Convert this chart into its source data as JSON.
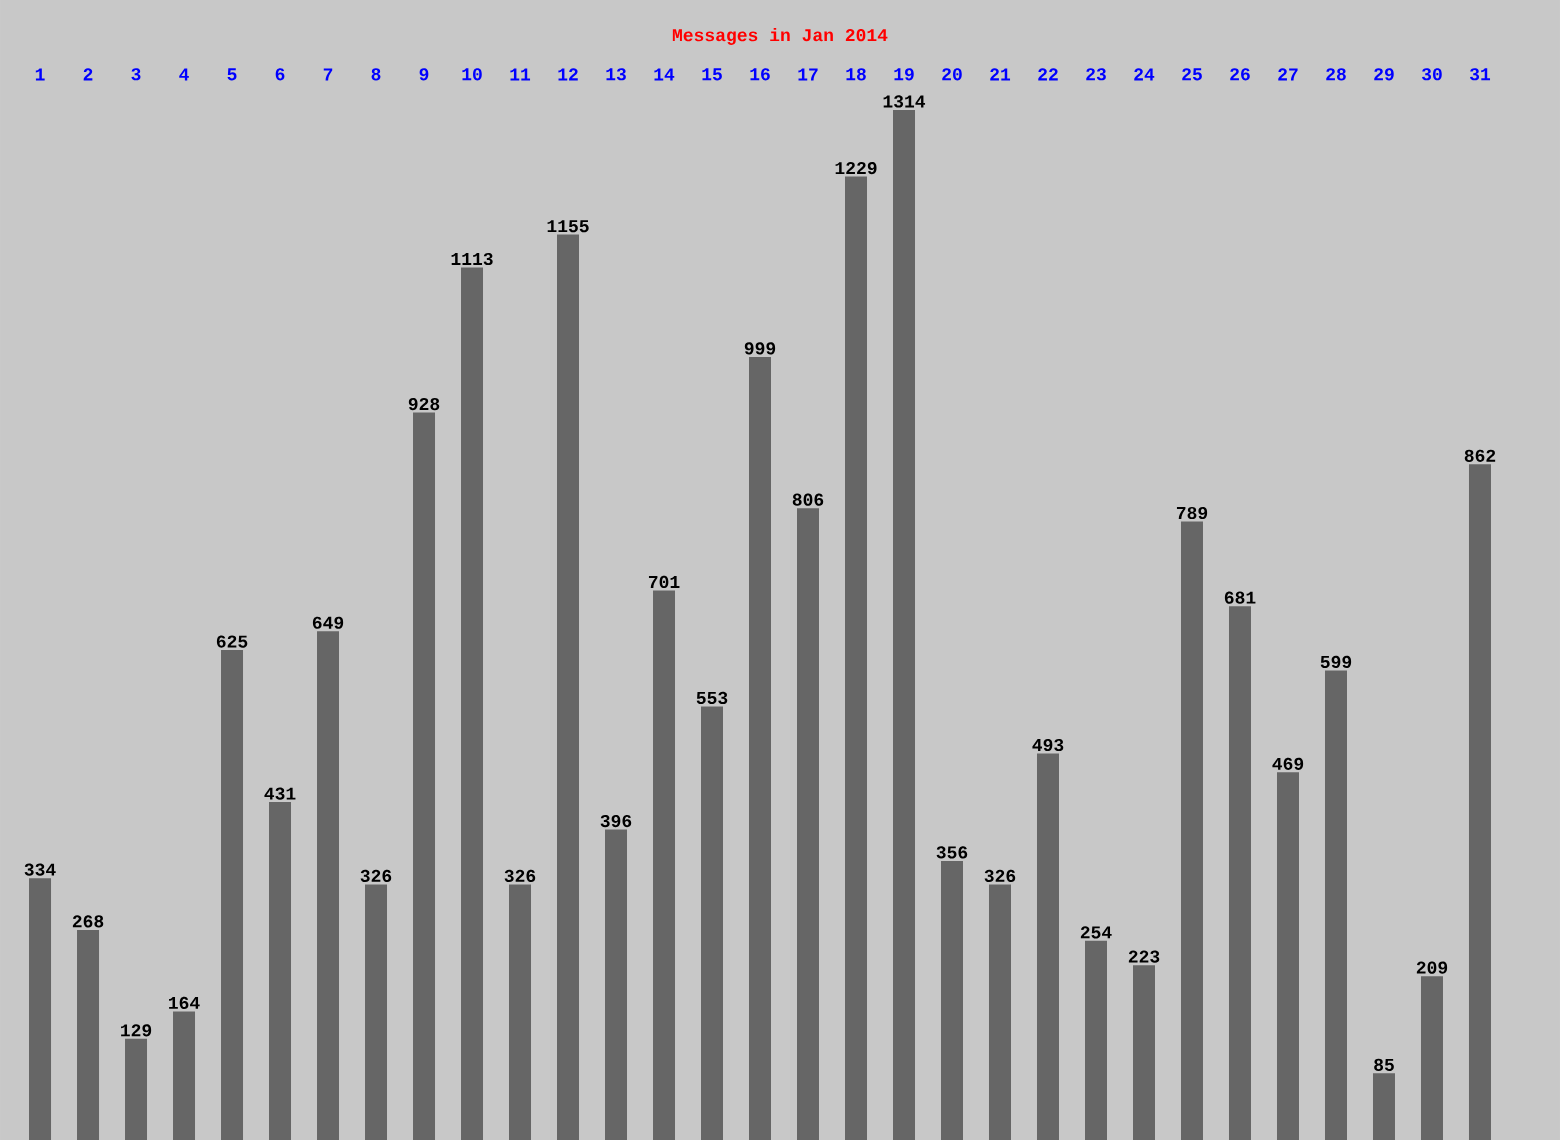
{
  "chart_data": {
    "type": "bar",
    "title": "Messages in Jan 2014",
    "categories": [
      "1",
      "2",
      "3",
      "4",
      "5",
      "6",
      "7",
      "8",
      "9",
      "10",
      "11",
      "12",
      "13",
      "14",
      "15",
      "16",
      "17",
      "18",
      "19",
      "20",
      "21",
      "22",
      "23",
      "24",
      "25",
      "26",
      "27",
      "28",
      "29",
      "30",
      "31"
    ],
    "values": [
      334,
      268,
      129,
      164,
      625,
      431,
      649,
      326,
      928,
      1113,
      326,
      1155,
      396,
      701,
      553,
      999,
      806,
      1229,
      1314,
      356,
      326,
      493,
      254,
      223,
      789,
      681,
      469,
      599,
      85,
      209,
      862
    ],
    "color": "#666666",
    "tick_labels": "x",
    "data_labels": true
  }
}
